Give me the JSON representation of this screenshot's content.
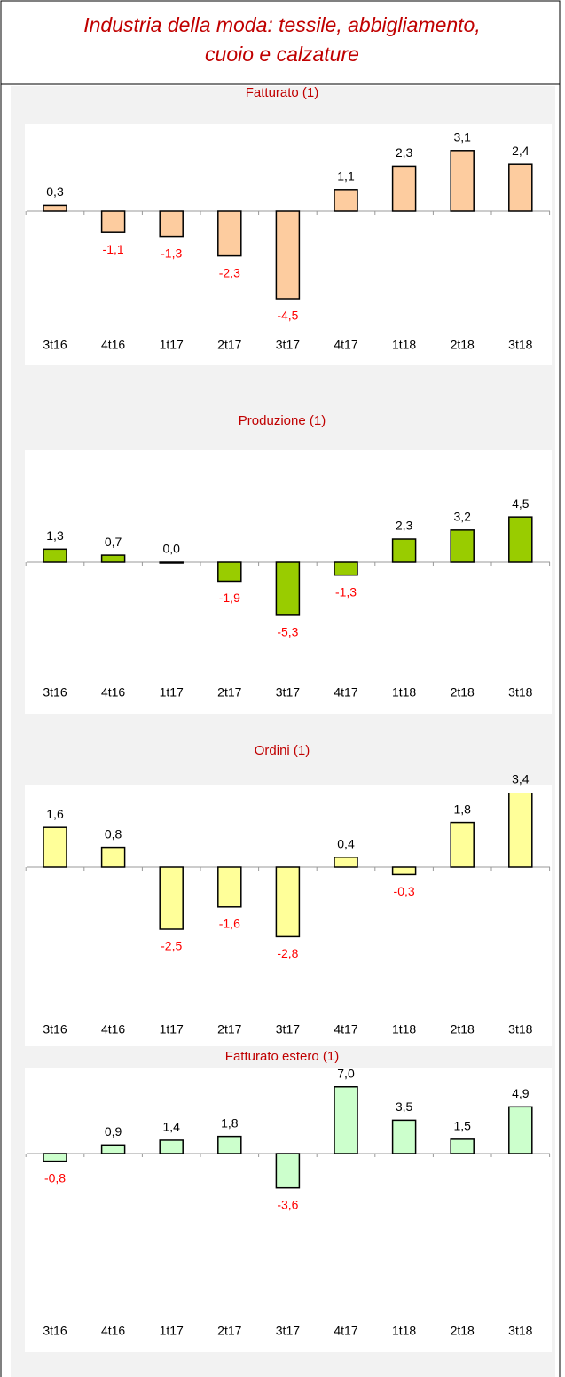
{
  "title": [
    "Industria della moda: tessile, abbigliamento,",
    "cuoio e calzature"
  ],
  "chart_data": [
    {
      "type": "bar",
      "title": "Fatturato (1)",
      "color": "#fdcc9f",
      "categories": [
        "3t16",
        "4t16",
        "1t17",
        "2t17",
        "3t17",
        "4t17",
        "1t18",
        "2t18",
        "3t18"
      ],
      "values": [
        0.3,
        -1.1,
        -1.3,
        -2.3,
        -4.5,
        1.1,
        2.3,
        3.1,
        2.4
      ],
      "value_labels": [
        "0,3",
        "-1,1",
        "-1,3",
        "-2,3",
        "-4,5",
        "1,1",
        "2,3",
        "3,1",
        "2,4"
      ],
      "ylim": [
        -6,
        4
      ]
    },
    {
      "type": "bar",
      "title": "Produzione (1)",
      "color": "#99cc00",
      "categories": [
        "3t16",
        "4t16",
        "1t17",
        "2t17",
        "3t17",
        "4t17",
        "1t18",
        "2t18",
        "3t18"
      ],
      "values": [
        1.3,
        0.7,
        0.0,
        -1.9,
        -5.3,
        -1.3,
        2.3,
        3.2,
        4.5
      ],
      "value_labels": [
        "1,3",
        "0,7",
        "0,0",
        "-1,9",
        "-5,3",
        "-1,3",
        "2,3",
        "3,2",
        "4,5"
      ],
      "ylim": [
        -10,
        10
      ]
    },
    {
      "type": "bar",
      "title": "Ordini (1)",
      "color": "#ffff99",
      "categories": [
        "3t16",
        "4t16",
        "1t17",
        "2t17",
        "3t17",
        "4t17",
        "1t18",
        "2t18",
        "3t18"
      ],
      "values": [
        1.6,
        0.8,
        -2.5,
        -1.6,
        -2.8,
        0.4,
        -0.3,
        1.8,
        3.4
      ],
      "value_labels": [
        "1,6",
        "0,8",
        "-2,5",
        "-1,6",
        "-2,8",
        "0,4",
        "-0,3",
        "1,8",
        "3,4"
      ],
      "ylim": [
        -4,
        3
      ]
    },
    {
      "type": "bar",
      "title": "Fatturato estero (1)",
      "color": "#ccffcc",
      "categories": [
        "3t16",
        "4t16",
        "1t17",
        "2t17",
        "3t17",
        "4t17",
        "1t18",
        "2t18",
        "3t18"
      ],
      "values": [
        -0.8,
        0.9,
        1.4,
        1.8,
        -3.6,
        7.0,
        3.5,
        1.5,
        4.9
      ],
      "value_labels": [
        "-0,8",
        "0,9",
        "1,4",
        "1,8",
        "-3,6",
        "7,0",
        "3,5",
        "1,5",
        "4,9"
      ],
      "ylim": [
        -8,
        8
      ]
    }
  ]
}
